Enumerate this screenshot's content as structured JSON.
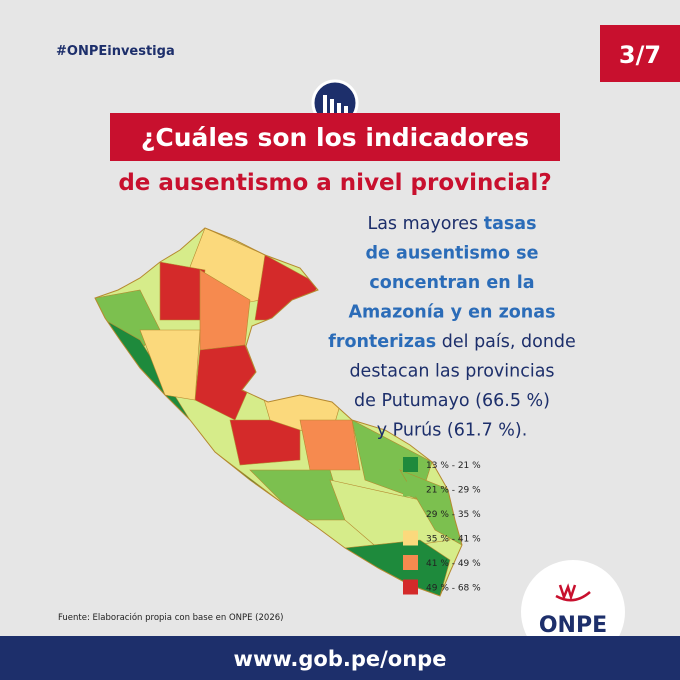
{
  "hashtag": "#ONPEinvestiga",
  "page_number": "3/7",
  "title": {
    "line1": "¿Cuáles son los indicadores",
    "line2": "de ausentismo a nivel provincial?"
  },
  "body": {
    "lines": [
      [
        {
          "text": "Las mayores ",
          "bold": false
        },
        {
          "text": "tasas",
          "bold": true
        }
      ],
      [
        {
          "text": "de ausentismo se",
          "bold": true
        }
      ],
      [
        {
          "text": "concentran en la",
          "bold": true
        }
      ],
      [
        {
          "text": "Amazonía y en zonas",
          "bold": true
        }
      ],
      [
        {
          "text": "fronterizas",
          "bold": true
        },
        {
          "text": " del país, donde",
          "bold": false
        }
      ],
      [
        {
          "text": "destacan las provincias",
          "bold": false
        }
      ],
      [
        {
          "text": "de Putumayo (66.5 %)",
          "bold": false
        }
      ],
      [
        {
          "text": "y Purús (61.7 %).",
          "bold": false
        }
      ]
    ]
  },
  "legend": [
    {
      "label": "13 % - 21 %",
      "color": "#1e8a3c"
    },
    {
      "label": "21 % - 29 %",
      "color": "#7cc04f"
    },
    {
      "label": "29 % - 35 %",
      "color": "#d6ec8a"
    },
    {
      "label": "35 % - 41 %",
      "color": "#fbd97c"
    },
    {
      "label": "41 % - 49 %",
      "color": "#f68a4f"
    },
    {
      "label": "49 % - 68 %",
      "color": "#d42a2a"
    }
  ],
  "source": "Fuente: Elaboración propia con base en ONPE (2026)",
  "logo": "ONPE",
  "footer": "www.gob.pe/onpe"
}
